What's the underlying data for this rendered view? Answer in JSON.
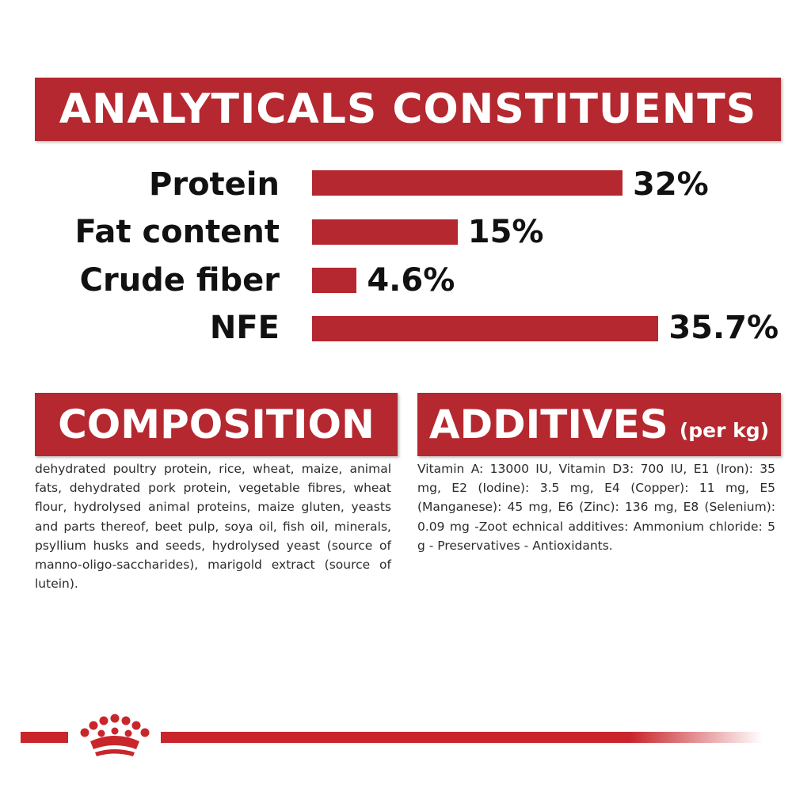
{
  "analyticals": {
    "title": "ANALYTICALS CONSTITUENTS",
    "rows": [
      {
        "label": "Protein",
        "value": "32%",
        "percent": 32
      },
      {
        "label": "Fat content",
        "value": "15%",
        "percent": 15
      },
      {
        "label": "Crude fiber",
        "value": "4.6%",
        "percent": 4.6
      },
      {
        "label": "NFE",
        "value": "35.7%",
        "percent": 35.7
      }
    ]
  },
  "composition": {
    "title": "COMPOSITION",
    "text": "dehydrated poultry protein, rice, wheat, maize, animal fats, dehydrated pork protein, vegetable fibres, wheat flour, hydrolysed animal proteins, maize gluten, yeasts and parts thereof, beet pulp, soya oil, fish oil, minerals, psyllium husks and seeds, hydrolysed yeast (source of manno-oligo-saccharides), marigold extract (source of lutein)."
  },
  "additives": {
    "title": "ADDITIVES",
    "title_suffix": "(per kg)",
    "text": "Vitamin A: 13000 IU, Vitamin D3: 700 IU, E1 (Iron): 35 mg, E2 (Iodine): 3.5 mg, E4 (Copper): 11 mg, E5 (Manganese): 45 mg, E6 (Zinc): 136 mg, E8 (Selenium): 0.09 mg -Zoot echnical additives: Ammonium chloride: 5 g - Preservatives - Antioxidants."
  },
  "footer": {
    "logo_icon": "royal-crown-icon",
    "brand_color": "#b5282f"
  }
}
